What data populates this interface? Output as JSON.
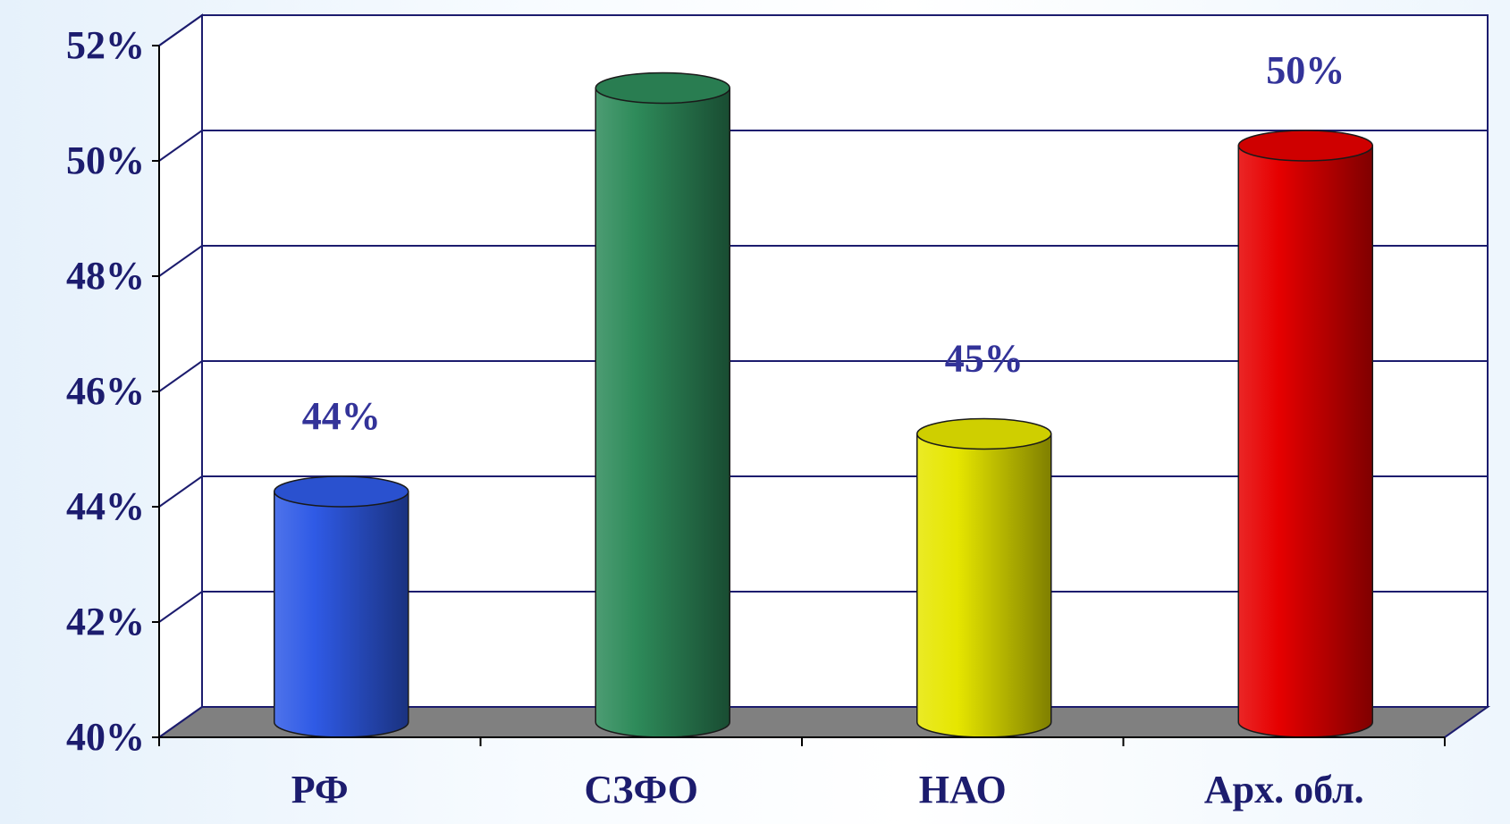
{
  "chart_data": {
    "type": "bar",
    "title": "",
    "xlabel": "",
    "ylabel": "",
    "categories": [
      "РФ",
      "СЗФО",
      "НАО",
      "Арх. обл."
    ],
    "values": [
      44,
      51,
      45,
      50
    ],
    "data_labels": [
      "44%",
      "",
      "45%",
      "50%"
    ],
    "ylim": [
      40,
      52
    ],
    "yticks": [
      40,
      42,
      44,
      46,
      48,
      50,
      52
    ],
    "ytick_labels": [
      "40%",
      "42%",
      "44%",
      "46%",
      "48%",
      "50%",
      "52%"
    ],
    "grid": true,
    "legend": "none",
    "bar_colors": [
      "#2f5ae6",
      "#2e8b5a",
      "#e6e600",
      "#e60000"
    ],
    "floor_color": "#808080",
    "text_color": "#1c1c6e",
    "label_color": "#333399"
  }
}
